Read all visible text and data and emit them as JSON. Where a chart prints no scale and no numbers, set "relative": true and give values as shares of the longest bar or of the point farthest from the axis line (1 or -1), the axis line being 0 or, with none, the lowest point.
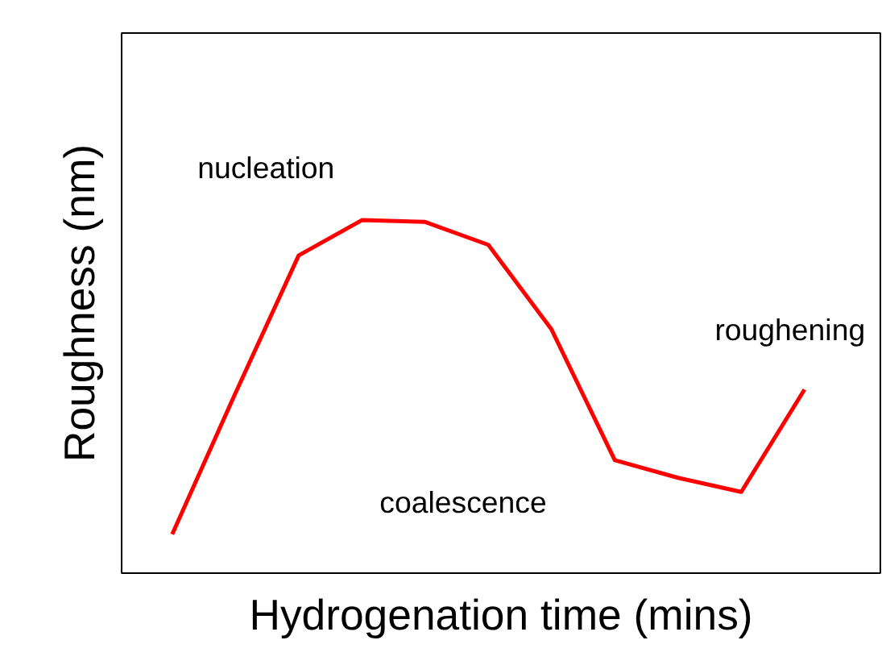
{
  "chart_data": {
    "type": "line",
    "relative": true,
    "xlabel": "Hydrogenation time (mins)",
    "ylabel": "Roughness (nm)",
    "categories": [
      null,
      null,
      null,
      null,
      null,
      null,
      null,
      null,
      null,
      null,
      null
    ],
    "series": [
      {
        "color": "#ff0000",
        "values": [
          0.11,
          0.51,
          0.9,
          1.0,
          0.995,
          0.93,
          0.69,
          0.32,
          0.27,
          0.23,
          0.52
        ]
      }
    ],
    "annotations": [
      "nucleation",
      "coalescence",
      "roughening"
    ]
  }
}
